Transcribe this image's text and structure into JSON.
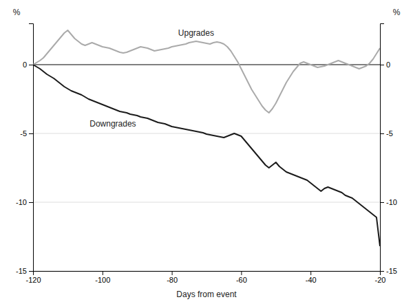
{
  "chart_data": {
    "type": "line",
    "x_label": "Days from event",
    "y_label": "%",
    "y2_label": "%",
    "xlim": [
      -120,
      -20
    ],
    "xticks": [
      -120,
      -100,
      -80,
      -60,
      -40,
      -20
    ],
    "ylim": [
      -15,
      3
    ],
    "yticks": [
      -15,
      -10,
      -5,
      0
    ],
    "y2lim": [
      -15,
      3
    ],
    "y2ticks": [
      -15,
      -10,
      -5,
      0
    ],
    "grid": "y",
    "x": [
      -120,
      -119,
      -118,
      -117,
      -116,
      -115,
      -114,
      -113,
      -112,
      -111,
      -110,
      -109,
      -108,
      -107,
      -106,
      -105,
      -104,
      -103,
      -102,
      -101,
      -100,
      -99,
      -98,
      -97,
      -96,
      -95,
      -94,
      -93,
      -92,
      -91,
      -90,
      -89,
      -88,
      -87,
      -86,
      -85,
      -84,
      -83,
      -82,
      -81,
      -80,
      -79,
      -78,
      -77,
      -76,
      -75,
      -74,
      -73,
      -72,
      -71,
      -70,
      -69,
      -68,
      -67,
      -66,
      -65,
      -64,
      -63,
      -62,
      -61,
      -60,
      -59,
      -58,
      -57,
      -56,
      -55,
      -54,
      -53,
      -52,
      -51,
      -50,
      -49,
      -48,
      -47,
      -46,
      -45,
      -44,
      -43,
      -42,
      -41,
      -40,
      -39,
      -38,
      -37,
      -36,
      -35,
      -34,
      -33,
      -32,
      -31,
      -30,
      -29,
      -28,
      -27,
      -26,
      -25,
      -24,
      -23,
      -22,
      -21,
      -20
    ],
    "series": [
      {
        "name": "Upgrades",
        "color": "#aaaaaa",
        "values": [
          0.0,
          0.15,
          0.3,
          0.5,
          0.8,
          1.1,
          1.4,
          1.7,
          2.0,
          2.3,
          2.5,
          2.2,
          1.9,
          1.7,
          1.5,
          1.4,
          1.5,
          1.6,
          1.5,
          1.4,
          1.3,
          1.25,
          1.2,
          1.1,
          1.0,
          0.9,
          0.85,
          0.9,
          1.0,
          1.1,
          1.2,
          1.3,
          1.25,
          1.2,
          1.1,
          1.0,
          1.05,
          1.1,
          1.15,
          1.2,
          1.3,
          1.35,
          1.4,
          1.45,
          1.5,
          1.6,
          1.65,
          1.7,
          1.65,
          1.6,
          1.55,
          1.5,
          1.6,
          1.65,
          1.6,
          1.5,
          1.3,
          1.0,
          0.6,
          0.2,
          -0.3,
          -0.8,
          -1.3,
          -1.8,
          -2.2,
          -2.6,
          -3.0,
          -3.3,
          -3.5,
          -3.2,
          -2.8,
          -2.3,
          -1.8,
          -1.3,
          -0.9,
          -0.5,
          -0.2,
          0.1,
          0.2,
          0.1,
          0.0,
          -0.1,
          -0.2,
          -0.15,
          -0.1,
          0.0,
          0.1,
          0.2,
          0.3,
          0.2,
          0.1,
          0.0,
          -0.1,
          -0.2,
          -0.3,
          -0.2,
          -0.1,
          0.1,
          0.4,
          0.8,
          1.2
        ]
      },
      {
        "name": "Downgrades",
        "color": "#1a1a1a",
        "values": [
          0.0,
          -0.15,
          -0.3,
          -0.5,
          -0.7,
          -0.85,
          -1.0,
          -1.2,
          -1.4,
          -1.6,
          -1.75,
          -1.9,
          -2.0,
          -2.1,
          -2.2,
          -2.35,
          -2.5,
          -2.6,
          -2.7,
          -2.8,
          -2.9,
          -3.0,
          -3.1,
          -3.2,
          -3.3,
          -3.4,
          -3.45,
          -3.5,
          -3.6,
          -3.65,
          -3.7,
          -3.8,
          -3.85,
          -3.9,
          -4.0,
          -4.1,
          -4.2,
          -4.25,
          -4.3,
          -4.4,
          -4.5,
          -4.55,
          -4.6,
          -4.65,
          -4.7,
          -4.75,
          -4.8,
          -4.85,
          -4.9,
          -4.95,
          -5.05,
          -5.1,
          -5.15,
          -5.2,
          -5.25,
          -5.3,
          -5.2,
          -5.1,
          -5.0,
          -5.1,
          -5.2,
          -5.5,
          -5.8,
          -6.1,
          -6.4,
          -6.7,
          -7.0,
          -7.3,
          -7.5,
          -7.3,
          -7.1,
          -7.4,
          -7.6,
          -7.8,
          -7.9,
          -8.0,
          -8.1,
          -8.2,
          -8.3,
          -8.4,
          -8.6,
          -8.8,
          -9.0,
          -9.2,
          -9.0,
          -8.9,
          -9.0,
          -9.1,
          -9.2,
          -9.3,
          -9.5,
          -9.6,
          -9.7,
          -9.9,
          -10.1,
          -10.3,
          -10.5,
          -10.7,
          -10.9,
          -11.1,
          -13.2
        ]
      }
    ]
  }
}
